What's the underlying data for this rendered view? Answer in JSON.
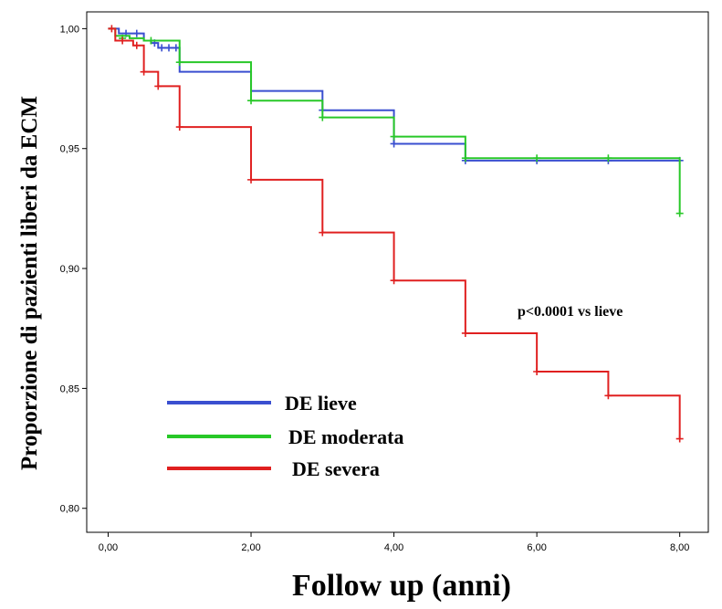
{
  "chart_data": {
    "type": "line",
    "title": "",
    "xlabel": "Follow up (anni)",
    "ylabel": "Proporzione di pazienti liberi da ECM",
    "xlim": [
      -0.3,
      8.4
    ],
    "ylim": [
      0.79,
      1.007
    ],
    "x_ticks": [
      0,
      2,
      4,
      6,
      8
    ],
    "x_tick_labels": [
      "0,00",
      "2,00",
      "4,00",
      "6,00",
      "8,00"
    ],
    "y_ticks": [
      0.8,
      0.85,
      0.9,
      0.95,
      1.0
    ],
    "y_tick_labels": [
      "0,80",
      "0,85",
      "0,90",
      "0,95",
      "1,00"
    ],
    "grid": false,
    "legend_position": "bottom-left",
    "annotation": "p<0.0001 vs lieve",
    "series": [
      {
        "name": "DE lieve",
        "color": "#3a4fd0",
        "steps": [
          [
            0,
            1.0
          ],
          [
            0.15,
            0.998
          ],
          [
            0.5,
            0.995
          ],
          [
            0.6,
            0.994
          ],
          [
            0.7,
            0.992
          ],
          [
            1.0,
            0.982
          ],
          [
            2.0,
            0.974
          ],
          [
            3.0,
            0.966
          ],
          [
            4.0,
            0.952
          ],
          [
            5.0,
            0.945
          ],
          [
            8.0,
            0.945
          ]
        ],
        "censored": [
          [
            0.25,
            0.998
          ],
          [
            0.4,
            0.998
          ],
          [
            0.65,
            0.994
          ],
          [
            0.75,
            0.992
          ],
          [
            0.85,
            0.992
          ],
          [
            0.95,
            0.992
          ],
          [
            3.0,
            0.966
          ],
          [
            4.0,
            0.952
          ],
          [
            5.0,
            0.945
          ],
          [
            6.0,
            0.945
          ],
          [
            7.0,
            0.945
          ],
          [
            8.0,
            0.945
          ]
        ]
      },
      {
        "name": "DE moderata",
        "color": "#28c828",
        "steps": [
          [
            0,
            1.0
          ],
          [
            0.1,
            0.997
          ],
          [
            0.3,
            0.996
          ],
          [
            0.5,
            0.995
          ],
          [
            1.0,
            0.986
          ],
          [
            2.0,
            0.97
          ],
          [
            3.0,
            0.963
          ],
          [
            4.0,
            0.955
          ],
          [
            5.0,
            0.946
          ],
          [
            8.0,
            0.946
          ],
          [
            8.0,
            0.923
          ]
        ],
        "censored": [
          [
            0.2,
            0.996
          ],
          [
            0.6,
            0.995
          ],
          [
            1.0,
            0.986
          ],
          [
            2.0,
            0.97
          ],
          [
            3.0,
            0.963
          ],
          [
            4.0,
            0.955
          ],
          [
            5.0,
            0.946
          ],
          [
            6.0,
            0.946
          ],
          [
            7.0,
            0.946
          ],
          [
            8.0,
            0.923
          ]
        ]
      },
      {
        "name": "DE severa",
        "color": "#e02020",
        "steps": [
          [
            0,
            1.0
          ],
          [
            0.1,
            0.995
          ],
          [
            0.35,
            0.993
          ],
          [
            0.5,
            0.982
          ],
          [
            0.7,
            0.976
          ],
          [
            1.0,
            0.959
          ],
          [
            2.0,
            0.937
          ],
          [
            3.0,
            0.915
          ],
          [
            4.0,
            0.895
          ],
          [
            5.0,
            0.873
          ],
          [
            6.0,
            0.857
          ],
          [
            7.0,
            0.847
          ],
          [
            8.0,
            0.847
          ],
          [
            8.0,
            0.829
          ]
        ],
        "censored": [
          [
            0.05,
            1.0
          ],
          [
            0.2,
            0.995
          ],
          [
            0.4,
            0.993
          ],
          [
            0.5,
            0.982
          ],
          [
            0.7,
            0.976
          ],
          [
            1.0,
            0.959
          ],
          [
            2.0,
            0.937
          ],
          [
            3.0,
            0.915
          ],
          [
            4.0,
            0.895
          ],
          [
            5.0,
            0.873
          ],
          [
            6.0,
            0.857
          ],
          [
            7.0,
            0.847
          ],
          [
            8.0,
            0.829
          ]
        ]
      }
    ]
  }
}
